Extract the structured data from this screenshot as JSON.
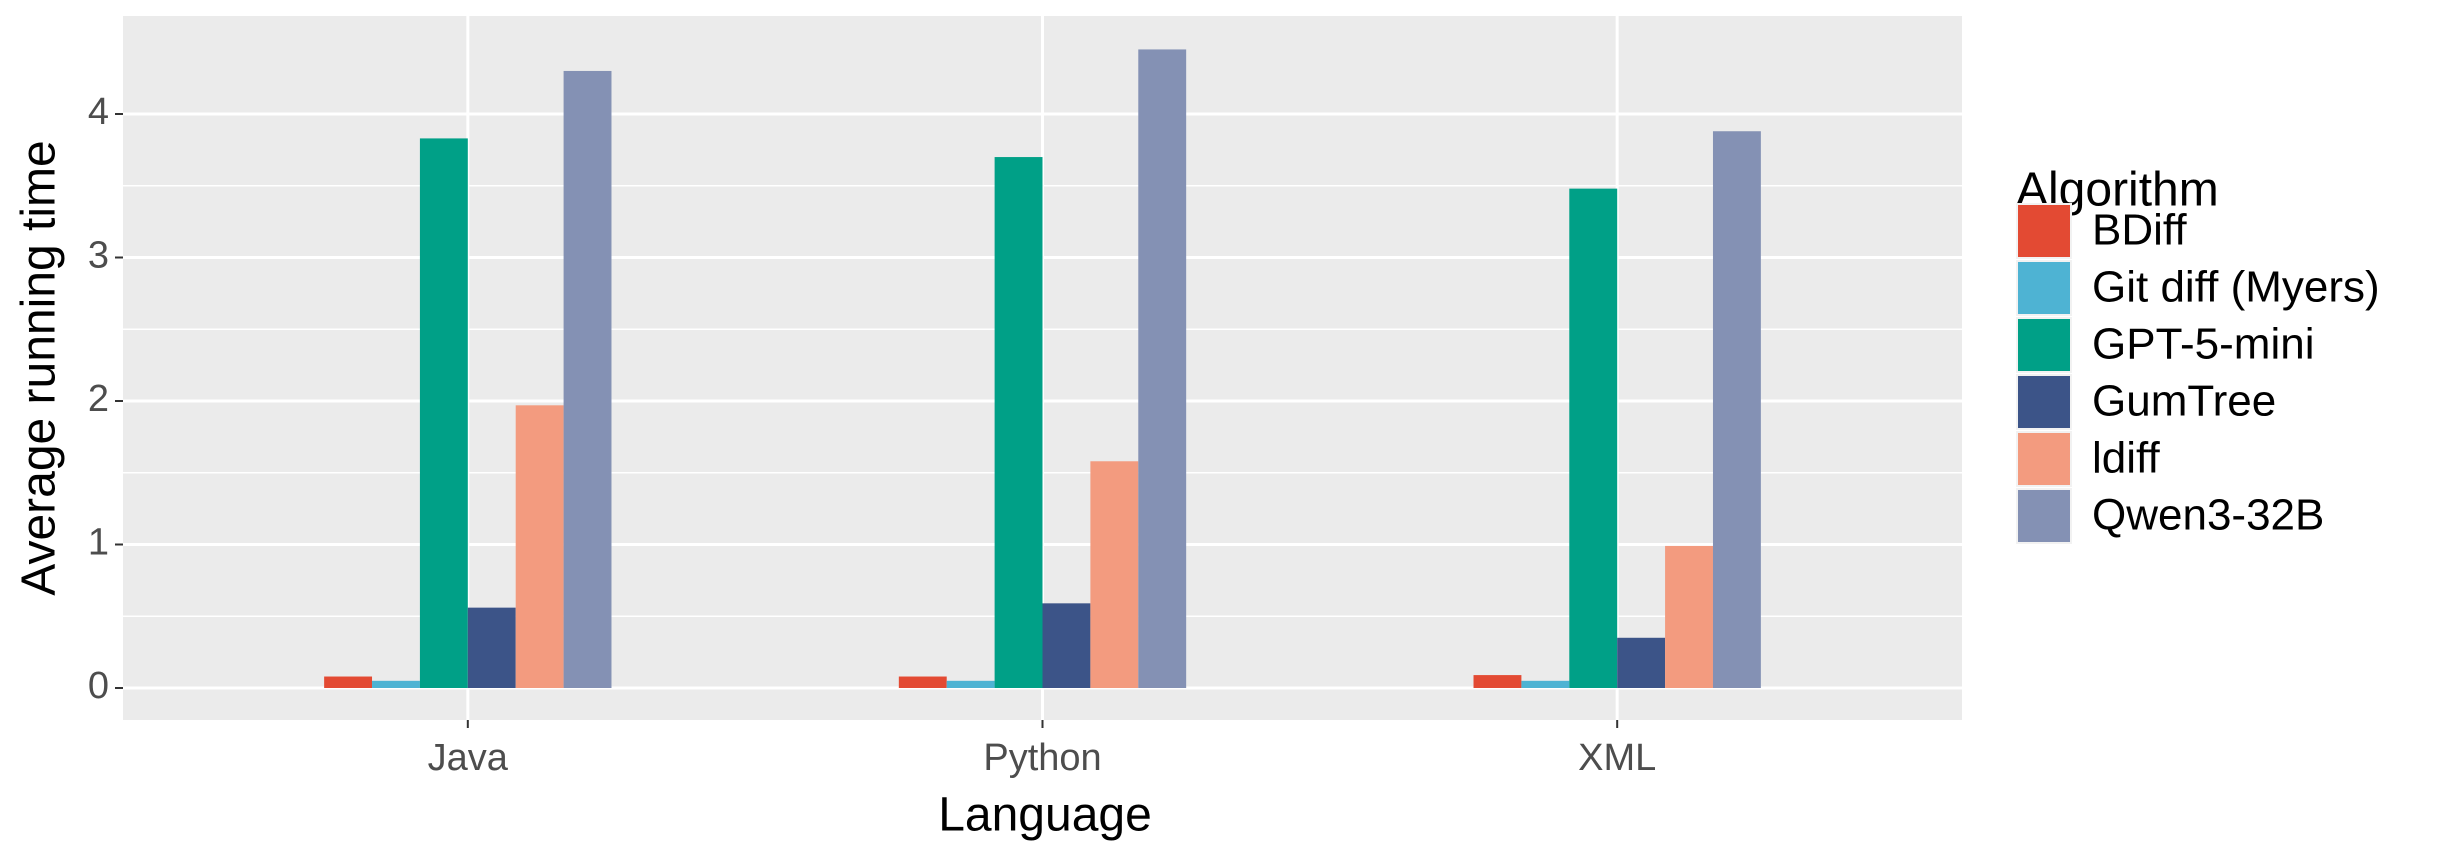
{
  "chart_data": {
    "type": "bar",
    "x_label": "Language",
    "y_label": "Average running time",
    "legend_title": "Algorithm",
    "legend_position": "right",
    "categories": [
      "Java",
      "Python",
      "XML"
    ],
    "series": [
      {
        "name": "BDiff",
        "color": "#e34a33",
        "values": [
          0.08,
          0.08,
          0.09
        ]
      },
      {
        "name": "Git diff (Myers)",
        "color": "#4eb3d3",
        "values": [
          0.05,
          0.05,
          0.05
        ]
      },
      {
        "name": "GPT-5-mini",
        "color": "#00a087",
        "values": [
          3.83,
          3.7,
          3.48
        ]
      },
      {
        "name": "GumTree",
        "color": "#3c5488",
        "values": [
          0.56,
          0.59,
          0.35
        ]
      },
      {
        "name": "ldiff",
        "color": "#f39b7f",
        "values": [
          1.97,
          1.58,
          0.99
        ]
      },
      {
        "name": "Qwen3-32B",
        "color": "#8491b4",
        "values": [
          4.3,
          4.45,
          3.88
        ]
      }
    ],
    "ylim": [
      -0.223,
      4.683
    ],
    "yticks": [
      0,
      1,
      2,
      3,
      4
    ],
    "grid": true
  }
}
